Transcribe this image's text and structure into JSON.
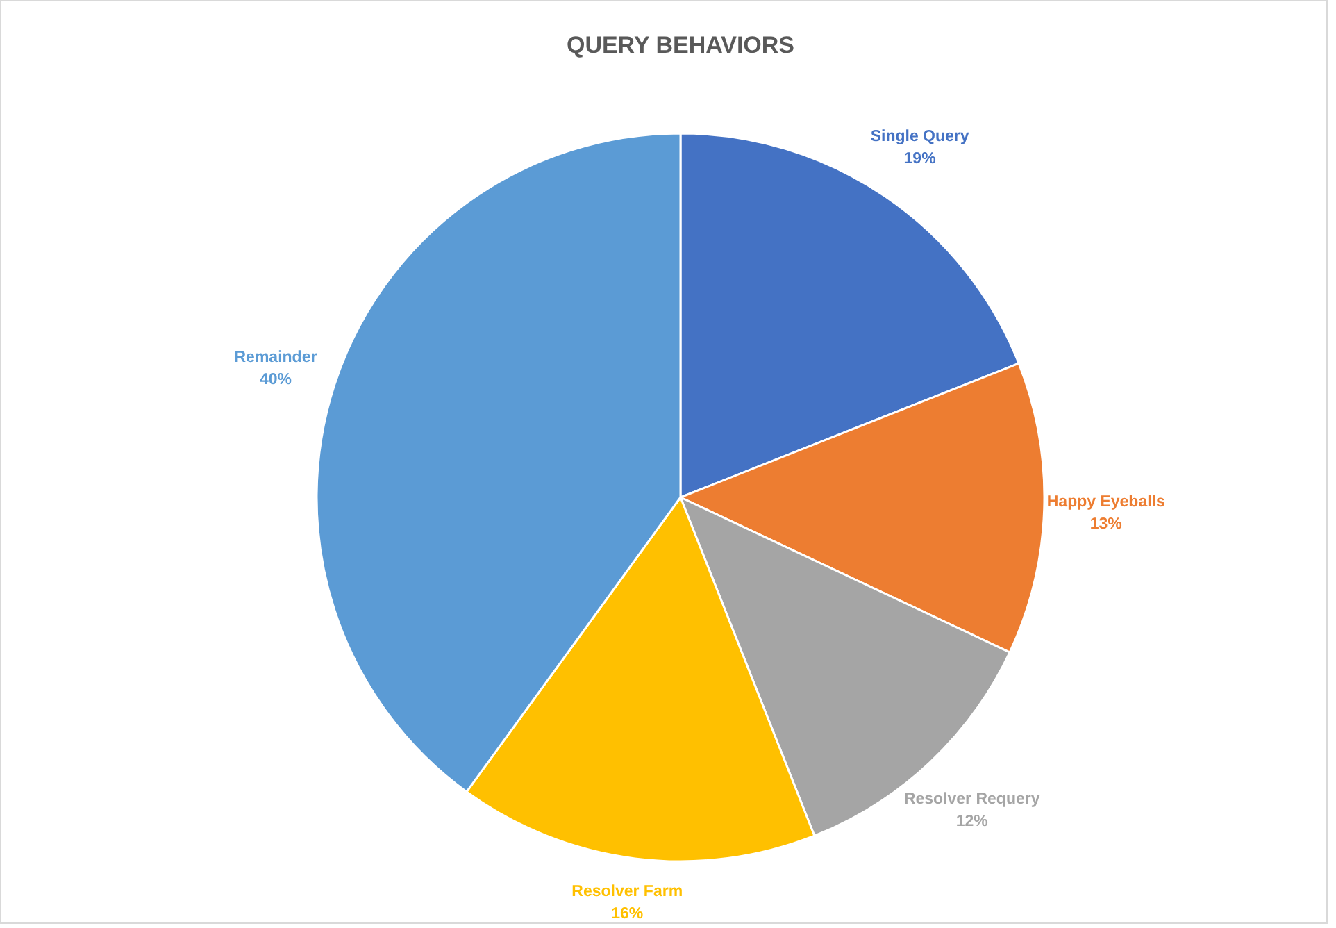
{
  "chart_data": {
    "type": "pie",
    "title": "QUERY BEHAVIORS",
    "categories": [
      "Single Query",
      "Happy Eyeballs",
      "Resolver Requery",
      "Resolver Farm",
      "Remainder"
    ],
    "values": [
      19,
      13,
      12,
      16,
      40
    ],
    "value_labels": [
      "19%",
      "13%",
      "12%",
      "16%",
      "40%"
    ],
    "colors": [
      "#4472c4",
      "#ed7d31",
      "#a5a5a5",
      "#ffc000",
      "#5b9bd5"
    ],
    "legend": false
  }
}
